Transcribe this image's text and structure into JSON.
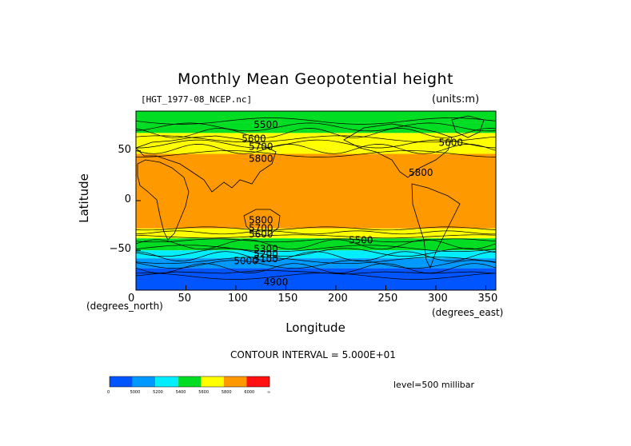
{
  "header": {
    "title": "Monthly Mean Geopotential height",
    "file_label": "[HGT_1977-08_NCEP.nc]",
    "units_label": "(units:m)"
  },
  "footer": {
    "contour_note": "CONTOUR INTERVAL = 5.000E+01",
    "level_note": "level=500 millibar"
  },
  "chart_data": {
    "type": "heatmap",
    "title": "Monthly Mean Geopotential height",
    "xlabel": "Longitude",
    "ylabel": "Latitude",
    "x_unit": "(degrees_east)",
    "y_unit": "(degrees_north)",
    "xlim": [
      0,
      360
    ],
    "ylim": [
      -90,
      90
    ],
    "x_ticks": [
      0,
      50,
      100,
      150,
      200,
      250,
      300,
      350
    ],
    "y_ticks": [
      50,
      0,
      -50
    ],
    "y_tick_labels": [
      "50",
      "0",
      "−50"
    ],
    "colorbar": {
      "colors": [
        "#0055ff",
        "#0099ff",
        "#00eeff",
        "#00dd22",
        "#ffff00",
        "#ff9900",
        "#ff1111"
      ],
      "labels": [
        "0",
        "5000",
        "5200",
        "5400",
        "5600",
        "5800",
        "6000",
        "∞"
      ]
    },
    "bands": [
      {
        "lat_top": 90,
        "lat_bottom": 78,
        "color": "#00dd22"
      },
      {
        "lat_top": 78,
        "lat_bottom": 68,
        "color": "#00dd22"
      },
      {
        "lat_top": 68,
        "lat_bottom": 55,
        "color": "#ffff00"
      },
      {
        "lat_top": 55,
        "lat_bottom": 47,
        "color": "#ffff00"
      },
      {
        "lat_top": 47,
        "lat_bottom": -28,
        "color": "#ff9900"
      },
      {
        "lat_top": -28,
        "lat_bottom": -38,
        "color": "#ffff00"
      },
      {
        "lat_top": -38,
        "lat_bottom": -50,
        "color": "#00dd22"
      },
      {
        "lat_top": -50,
        "lat_bottom": -58,
        "color": "#00eeff"
      },
      {
        "lat_top": -58,
        "lat_bottom": -68,
        "color": "#0099ff"
      },
      {
        "lat_top": -68,
        "lat_bottom": -90,
        "color": "#0055ff"
      }
    ],
    "contour_labels": [
      {
        "text": "5500",
        "lon": 130,
        "lat": 73
      },
      {
        "text": "5600",
        "lon": 118,
        "lat": 59
      },
      {
        "text": "5700",
        "lon": 125,
        "lat": 51
      },
      {
        "text": "5800",
        "lon": 125,
        "lat": 39
      },
      {
        "text": "5800",
        "lon": 285,
        "lat": 25
      },
      {
        "text": "5600",
        "lon": 315,
        "lat": 55
      },
      {
        "text": "5800",
        "lon": 125,
        "lat": -23
      },
      {
        "text": "5700",
        "lon": 125,
        "lat": -31
      },
      {
        "text": "5600",
        "lon": 125,
        "lat": -37
      },
      {
        "text": "5500",
        "lon": 225,
        "lat": -43
      },
      {
        "text": "5300",
        "lon": 130,
        "lat": -52
      },
      {
        "text": "5200",
        "lon": 130,
        "lat": -57
      },
      {
        "text": "5100",
        "lon": 130,
        "lat": -62
      },
      {
        "text": "5000",
        "lon": 110,
        "lat": -64
      },
      {
        "text": "4900",
        "lon": 140,
        "lat": -85
      }
    ]
  }
}
